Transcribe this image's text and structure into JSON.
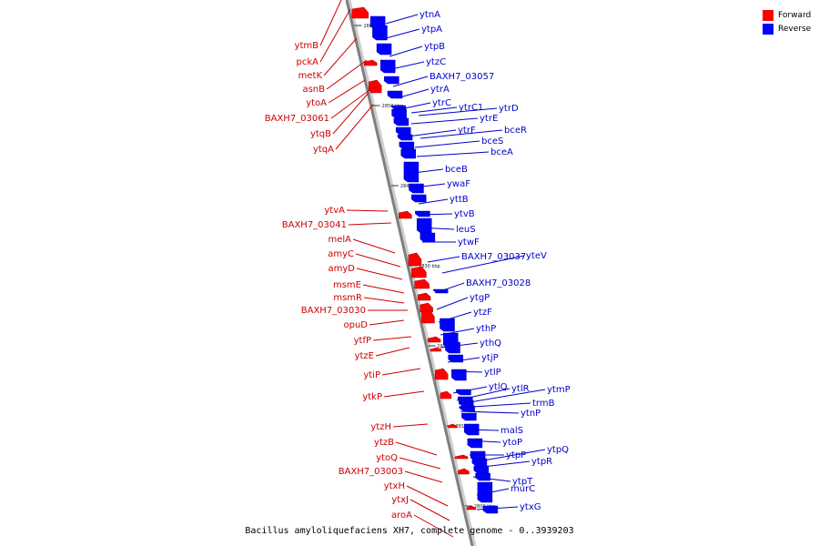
{
  "legend": [
    {
      "label": "Forward",
      "color": "#ff0000"
    },
    {
      "label": "Reverse",
      "color": "#0000ff"
    }
  ],
  "colors": {
    "forward_text": "#cc0000",
    "reverse_text": "#0000cc",
    "axis": "#7f7f7f"
  },
  "caption": "Bacillus amyloliquefaciens XH7, complete genome - 0..3939203",
  "scale_labels": [
    "2860 kbp",
    "2850 kbp",
    "2840 kbp",
    "2830 kbp",
    "2820 kbp",
    "2810 kbp",
    "2800 kbp"
  ],
  "forward_genes": [
    "ytmB",
    "pckA",
    "metK",
    "asnB",
    "ytoA",
    "BAXH7_03061",
    "ytqB",
    "ytqA",
    "ytvA",
    "BAXH7_03041",
    "melA",
    "amyC",
    "amyD",
    "msmE",
    "msmR",
    "BAXH7_03030",
    "opuD",
    "ytfP",
    "ytzE",
    "ytiP",
    "ytkP",
    "ytzH",
    "ytzB",
    "ytoQ",
    "BAXH7_03003",
    "ytxH",
    "ytxJ",
    "aroA"
  ],
  "reverse_genes": [
    "ytnA",
    "ytpA",
    "ytpB",
    "ytzC",
    "BAXH7_03057",
    "ytrA",
    "ytrC",
    "ytrC1",
    "ytrD",
    "ytrE",
    "ytrF",
    "bceR",
    "bceS",
    "bceA",
    "bceB",
    "ywaF",
    "yttB",
    "ytvB",
    "leuS",
    "ytwF",
    "BAXH7_03037",
    "yteV",
    "BAXH7_03028",
    "ytgP",
    "ytzF",
    "ythP",
    "ythQ",
    "ytjP",
    "ytlP",
    "ytlQ",
    "ytlR",
    "ytmP",
    "trmB",
    "ytnP",
    "malS",
    "ytoP",
    "ytpP",
    "ytpQ",
    "ytpR",
    "ytpT",
    "murC",
    "ytxG"
  ]
}
